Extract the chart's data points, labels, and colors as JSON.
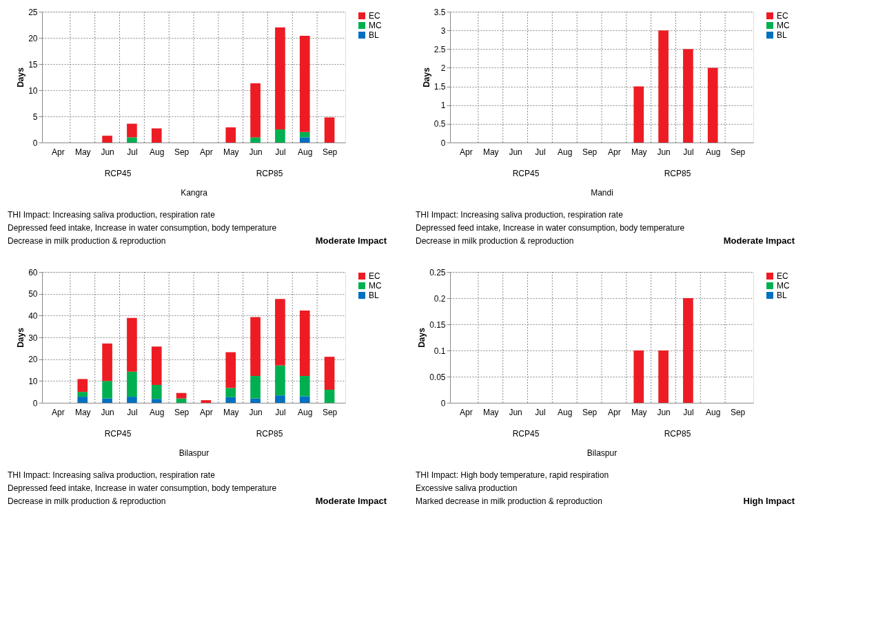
{
  "chart_data": [
    {
      "type": "bar",
      "stacked": true,
      "xlabel": "Kangra",
      "ylabel": "Days",
      "categories": [
        "Apr",
        "May",
        "Jun",
        "Jul",
        "Aug",
        "Sep",
        "Apr",
        "May",
        "Jun",
        "Jul",
        "Aug",
        "Sep"
      ],
      "series": [
        {
          "name": "BL",
          "color": "#0070c0",
          "values": [
            0,
            0,
            0,
            0,
            0,
            0,
            0,
            0,
            0,
            0,
            1,
            0
          ]
        },
        {
          "name": "MC",
          "color": "#00b050",
          "values": [
            0,
            0,
            0,
            1,
            0,
            0,
            0,
            0,
            1,
            2.5,
            1,
            0
          ]
        },
        {
          "name": "EC",
          "color": "#ed1c24",
          "values": [
            0,
            0,
            1.3,
            2.6,
            2.7,
            0,
            0,
            2.9,
            10.3,
            19.5,
            18.4,
            4.8
          ]
        }
      ],
      "ylim": [
        0,
        25
      ],
      "yticks": [
        0,
        5,
        10,
        15,
        20,
        25
      ],
      "grid": true,
      "legend": "right",
      "annotations": [
        "RCP45",
        "RCP85",
        "THI Impact: Increasing saliva production, respiration rate",
        "Depressed feed intake, Increase in water consumption, body temperature",
        "Decrease in milk production & reproduction",
        "Moderate Impact"
      ]
    },
    {
      "type": "bar",
      "stacked": true,
      "xlabel": "Mandi",
      "ylabel": "Days",
      "categories": [
        "Apr",
        "May",
        "Jun",
        "Jul",
        "Aug",
        "Sep",
        "Apr",
        "May",
        "Jun",
        "Jul",
        "Aug",
        "Sep"
      ],
      "series": [
        {
          "name": "BL",
          "color": "#0070c0",
          "values": [
            0,
            0,
            0,
            0,
            0,
            0,
            0,
            0,
            0,
            0,
            0,
            0
          ]
        },
        {
          "name": "MC",
          "color": "#00b050",
          "values": [
            0,
            0,
            0,
            0,
            0,
            0,
            0,
            0,
            0,
            0,
            0,
            0
          ]
        },
        {
          "name": "EC",
          "color": "#ed1c24",
          "values": [
            0,
            0,
            0,
            0,
            0,
            0,
            0,
            1.5,
            3,
            2.5,
            2,
            0
          ]
        }
      ],
      "ylim": [
        0,
        3.5
      ],
      "yticks": [
        0,
        0.5,
        1,
        1.5,
        2,
        2.5,
        3,
        3.5
      ],
      "grid": true,
      "legend": "right",
      "annotations": [
        "RCP45",
        "RCP85",
        "THI Impact: Increasing saliva production, respiration rate",
        "Depressed feed intake, Increase in water consumption, body temperature",
        "Decrease in milk production & reproduction",
        "Moderate Impact"
      ]
    },
    {
      "type": "bar",
      "stacked": true,
      "xlabel": "Bilaspur",
      "ylabel": "Days",
      "categories": [
        "Apr",
        "May",
        "Jun",
        "Jul",
        "Aug",
        "Sep",
        "Apr",
        "May",
        "Jun",
        "Jul",
        "Aug",
        "Sep"
      ],
      "series": [
        {
          "name": "BL",
          "color": "#0070c0",
          "values": [
            0,
            2.8,
            2,
            2.8,
            1.8,
            0,
            0,
            2.6,
            2,
            3.4,
            3,
            0
          ]
        },
        {
          "name": "MC",
          "color": "#00b050",
          "values": [
            0,
            2.2,
            8,
            11.5,
            6.4,
            2,
            0,
            4.2,
            10.3,
            13.7,
            9.3,
            6
          ]
        },
        {
          "name": "EC",
          "color": "#ed1c24",
          "values": [
            0,
            5.9,
            17.2,
            24.6,
            17.6,
            2.5,
            1.2,
            16.4,
            27,
            30.5,
            30,
            15.1
          ]
        }
      ],
      "ylim": [
        0,
        60
      ],
      "yticks": [
        0,
        10,
        20,
        30,
        40,
        50,
        60
      ],
      "grid": true,
      "legend": "right",
      "annotations": [
        "RCP45",
        "RCP85",
        "THI Impact: Increasing saliva production, respiration rate",
        "Depressed feed intake, Increase in water consumption, body temperature",
        "Decrease in milk production & reproduction",
        "Moderate Impact"
      ]
    },
    {
      "type": "bar",
      "stacked": true,
      "xlabel": "Bilaspur",
      "ylabel": "Days",
      "categories": [
        "Apr",
        "May",
        "Jun",
        "Jul",
        "Aug",
        "Sep",
        "Apr",
        "May",
        "Jun",
        "Jul",
        "Aug",
        "Sep"
      ],
      "series": [
        {
          "name": "BL",
          "color": "#0070c0",
          "values": [
            0,
            0,
            0,
            0,
            0,
            0,
            0,
            0,
            0,
            0,
            0,
            0
          ]
        },
        {
          "name": "MC",
          "color": "#00b050",
          "values": [
            0,
            0,
            0,
            0,
            0,
            0,
            0,
            0,
            0,
            0,
            0,
            0
          ]
        },
        {
          "name": "EC",
          "color": "#ed1c24",
          "values": [
            0,
            0,
            0,
            0,
            0,
            0,
            0,
            0.1,
            0.1,
            0.2,
            0,
            0
          ]
        }
      ],
      "ylim": [
        0,
        0.25
      ],
      "yticks": [
        0,
        0.05,
        0.1,
        0.15,
        0.2,
        0.25
      ],
      "grid": true,
      "legend": "right",
      "annotations": [
        "RCP45",
        "RCP85",
        "THI Impact: High body temperature, rapid respiration",
        "Excessive saliva production",
        "Marked decrease in milk production & reproduction",
        "High Impact"
      ]
    }
  ]
}
